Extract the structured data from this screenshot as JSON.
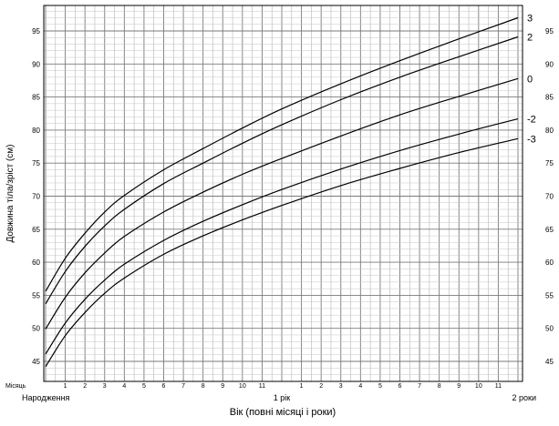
{
  "chart_data": {
    "type": "line",
    "ylabel": "Довжина тіла/зріст (см)",
    "xlabel": "Вік (повні місяці і роки)",
    "x_unit": "months",
    "xlim": [
      0,
      24
    ],
    "ylim": [
      42,
      98
    ],
    "y_ticks": [
      45,
      50,
      55,
      60,
      65,
      70,
      75,
      80,
      85,
      90,
      95
    ],
    "y_tick_labels": [
      "45",
      "50",
      "55",
      "60",
      "65",
      "70",
      "75",
      "80",
      "85",
      "90",
      "95"
    ],
    "month_ticks": [
      {
        "x": 1,
        "label": "1"
      },
      {
        "x": 2,
        "label": "2"
      },
      {
        "x": 3,
        "label": "3"
      },
      {
        "x": 4,
        "label": "4"
      },
      {
        "x": 5,
        "label": "5"
      },
      {
        "x": 6,
        "label": "6"
      },
      {
        "x": 7,
        "label": "7"
      },
      {
        "x": 8,
        "label": "8"
      },
      {
        "x": 9,
        "label": "9"
      },
      {
        "x": 10,
        "label": "10"
      },
      {
        "x": 11,
        "label": "11"
      },
      {
        "x": 13,
        "label": "1"
      },
      {
        "x": 14,
        "label": "2"
      },
      {
        "x": 15,
        "label": "3"
      },
      {
        "x": 16,
        "label": "4"
      },
      {
        "x": 17,
        "label": "5"
      },
      {
        "x": 18,
        "label": "6"
      },
      {
        "x": 19,
        "label": "7"
      },
      {
        "x": 20,
        "label": "8"
      },
      {
        "x": 21,
        "label": "9"
      },
      {
        "x": 22,
        "label": "10"
      },
      {
        "x": 23,
        "label": "11"
      }
    ],
    "month_row_label": "Місяць",
    "year_labels": [
      {
        "x": 0,
        "label": "Народження"
      },
      {
        "x": 12,
        "label": "1 рік"
      },
      {
        "x": 24,
        "label": "2 роки"
      }
    ],
    "grid": true,
    "series": [
      {
        "name": "3",
        "x": [
          0,
          1,
          2,
          3,
          4,
          6,
          8,
          10,
          12,
          15,
          18,
          21,
          24
        ],
        "values": [
          55.6,
          60.6,
          64.4,
          67.6,
          70.1,
          74.0,
          77.2,
          80.3,
          83.2,
          87.0,
          90.5,
          93.8,
          97.0
        ]
      },
      {
        "name": "2",
        "x": [
          0,
          1,
          2,
          3,
          4,
          6,
          8,
          10,
          12,
          15,
          18,
          21,
          24
        ],
        "values": [
          53.7,
          58.6,
          62.4,
          65.5,
          68.0,
          71.9,
          75.0,
          78.0,
          80.8,
          84.6,
          88.0,
          91.1,
          94.1
        ]
      },
      {
        "name": "0",
        "x": [
          0,
          1,
          2,
          3,
          4,
          6,
          8,
          10,
          12,
          15,
          18,
          21,
          24
        ],
        "values": [
          49.9,
          54.7,
          58.4,
          61.4,
          63.9,
          67.6,
          70.6,
          73.3,
          75.7,
          79.1,
          82.3,
          85.1,
          87.8
        ]
      },
      {
        "name": "-2",
        "x": [
          0,
          1,
          2,
          3,
          4,
          6,
          8,
          10,
          12,
          15,
          18,
          21,
          24
        ],
        "values": [
          46.1,
          50.8,
          54.4,
          57.3,
          59.7,
          63.3,
          66.2,
          68.7,
          71.0,
          74.1,
          76.9,
          79.4,
          81.7
        ]
      },
      {
        "name": "-3",
        "x": [
          0,
          1,
          2,
          3,
          4,
          6,
          8,
          10,
          12,
          15,
          18,
          21,
          24
        ],
        "values": [
          44.2,
          48.9,
          52.4,
          55.3,
          57.6,
          61.2,
          64.0,
          66.4,
          68.6,
          71.6,
          74.2,
          76.6,
          78.7
        ]
      }
    ]
  }
}
